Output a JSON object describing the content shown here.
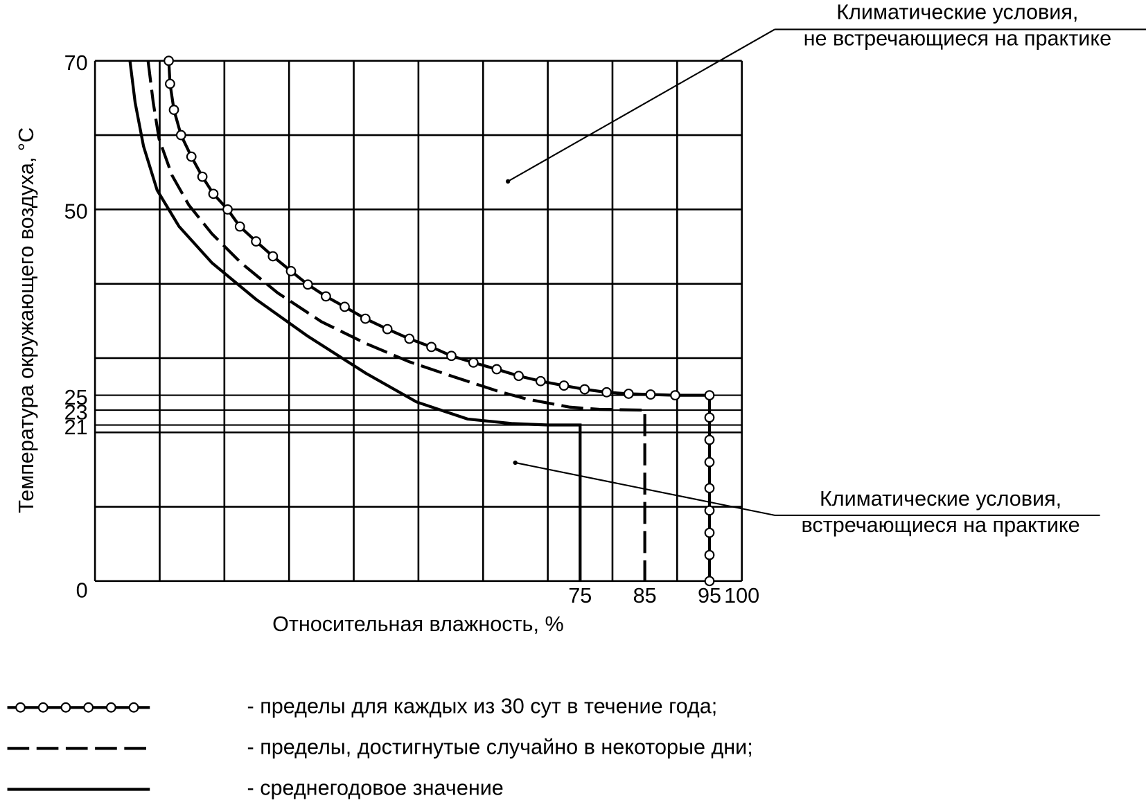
{
  "chart_data": {
    "type": "line",
    "xlabel": "Относительная влажность, %",
    "ylabel": "Температура окружающего воздуха, °C",
    "xlim": [
      0,
      100
    ],
    "ylim": [
      0,
      70
    ],
    "xticks": [
      75,
      85,
      95,
      100
    ],
    "yticks": [
      0,
      21,
      23,
      25,
      50,
      70
    ],
    "xgrid": [
      0,
      10,
      20,
      30,
      40,
      50,
      60,
      70,
      80,
      90,
      100
    ],
    "ygrid": [
      0,
      10,
      20,
      30,
      40,
      50,
      60,
      70
    ],
    "color": "#000000",
    "series": [
      {
        "name": "- пределы для каждых из 30 сут в течение года;",
        "style": "circles",
        "x": [
          11.4,
          11.6,
          12.2,
          13.3,
          14.9,
          16.6,
          18.3,
          20.5,
          22.4,
          24.9,
          27.5,
          30.3,
          32.9,
          35.7,
          38.6,
          41.8,
          45.2,
          48.6,
          52.0,
          55.1,
          58.5,
          62.1,
          65.5,
          68.9,
          72.5,
          75.7,
          79.1,
          82.5,
          85.9,
          89.7,
          95,
          95,
          95,
          95,
          95,
          95,
          95,
          95,
          95
        ],
        "values": [
          70,
          66.9,
          63.4,
          60.0,
          57.1,
          54.4,
          52.1,
          50.0,
          47.7,
          45.7,
          43.7,
          41.7,
          39.9,
          38.3,
          36.9,
          35.3,
          33.9,
          32.6,
          31.5,
          30.3,
          29.4,
          28.5,
          27.6,
          26.9,
          26.3,
          25.8,
          25.4,
          25.2,
          25.1,
          25,
          25,
          22,
          19,
          16,
          12.5,
          9.5,
          6.5,
          3.5,
          0
        ]
      },
      {
        "name": "- пределы, достигнутые случайно в некоторые дни;",
        "style": "dashed",
        "x": [
          8.2,
          9.0,
          9.9,
          11.9,
          14.5,
          18.1,
          22.6,
          28.2,
          35.0,
          41.8,
          48.6,
          55.4,
          62.1,
          66.7,
          73.4,
          78,
          85,
          85
        ],
        "values": [
          70,
          64.4,
          59.5,
          54.6,
          50.6,
          46.7,
          42.8,
          38.8,
          34.9,
          32.0,
          29.5,
          27.5,
          25.6,
          24.5,
          23.4,
          23.1,
          23,
          0
        ]
      },
      {
        "name": "- среднегодовое значение",
        "style": "solid",
        "x": [
          5.4,
          6.2,
          7.5,
          9.6,
          13,
          18.1,
          24.9,
          32.8,
          41.8,
          49.7,
          57.6,
          64.4,
          70,
          75,
          75
        ],
        "values": [
          70,
          64.4,
          58.5,
          52.6,
          47.7,
          42.8,
          37.9,
          33,
          28,
          24.1,
          21.8,
          21.2,
          21,
          21,
          0
        ]
      }
    ],
    "annotations": [
      {
        "lines": [
          "Климатические условия,",
          "не встречающиеся на практике"
        ]
      },
      {
        "lines": [
          "Климатические условия,",
          "встречающиеся на практике"
        ]
      }
    ]
  }
}
